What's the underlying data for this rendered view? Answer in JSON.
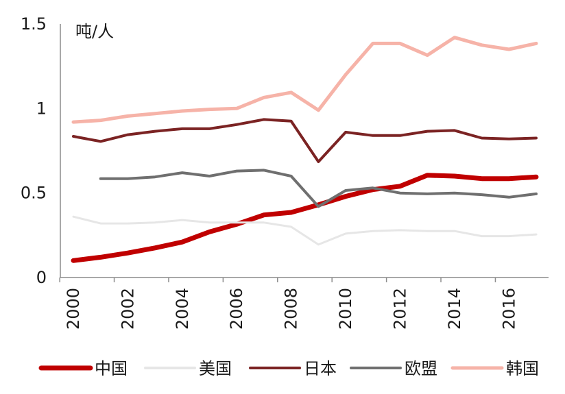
{
  "chart_data": {
    "type": "line",
    "unit_label": "吨/人",
    "x": [
      2000,
      2001,
      2002,
      2003,
      2004,
      2005,
      2006,
      2007,
      2008,
      2009,
      2010,
      2011,
      2012,
      2013,
      2014,
      2015,
      2016,
      2017
    ],
    "x_ticks": [
      "2000",
      "2002",
      "2004",
      "2006",
      "2008",
      "2010",
      "2012",
      "2014",
      "2016"
    ],
    "y_ticks": [
      "0",
      "0.5",
      "1",
      "1.5"
    ],
    "ylim": [
      0,
      1.5
    ],
    "xlim": [
      2000,
      2017
    ],
    "grid": false,
    "legend_position": "bottom",
    "series": [
      {
        "name": "中国",
        "color": "#c00000",
        "width": 7,
        "values": [
          0.1,
          0.12,
          0.145,
          0.175,
          0.21,
          0.27,
          0.315,
          0.37,
          0.385,
          0.43,
          0.48,
          0.52,
          0.54,
          0.605,
          0.6,
          0.585,
          0.585,
          0.595
        ]
      },
      {
        "name": "美国",
        "color": "#e6e6e6",
        "width": 3,
        "values": [
          0.36,
          0.32,
          0.32,
          0.325,
          0.34,
          0.325,
          0.325,
          0.325,
          0.3,
          0.195,
          0.26,
          0.275,
          0.28,
          0.275,
          0.275,
          0.245,
          0.245,
          0.255
        ]
      },
      {
        "name": "日本",
        "color": "#7b2323",
        "width": 4,
        "values": [
          0.835,
          0.805,
          0.845,
          0.865,
          0.88,
          0.88,
          0.905,
          0.935,
          0.925,
          0.685,
          0.86,
          0.84,
          0.84,
          0.865,
          0.87,
          0.825,
          0.82,
          0.825
        ]
      },
      {
        "name": "欧盟",
        "color": "#6f6f6f",
        "width": 4,
        "values": [
          null,
          0.585,
          0.585,
          0.595,
          0.62,
          0.6,
          0.63,
          0.635,
          0.6,
          0.42,
          0.515,
          0.53,
          0.5,
          0.495,
          0.5,
          0.49,
          0.475,
          0.495
        ]
      },
      {
        "name": "韩国",
        "color": "#f6b3a8",
        "width": 5,
        "values": [
          0.92,
          0.93,
          0.955,
          0.97,
          0.985,
          0.995,
          1.0,
          1.065,
          1.095,
          0.99,
          1.2,
          1.385,
          1.385,
          1.315,
          1.42,
          1.375,
          1.35,
          1.385
        ]
      }
    ]
  }
}
